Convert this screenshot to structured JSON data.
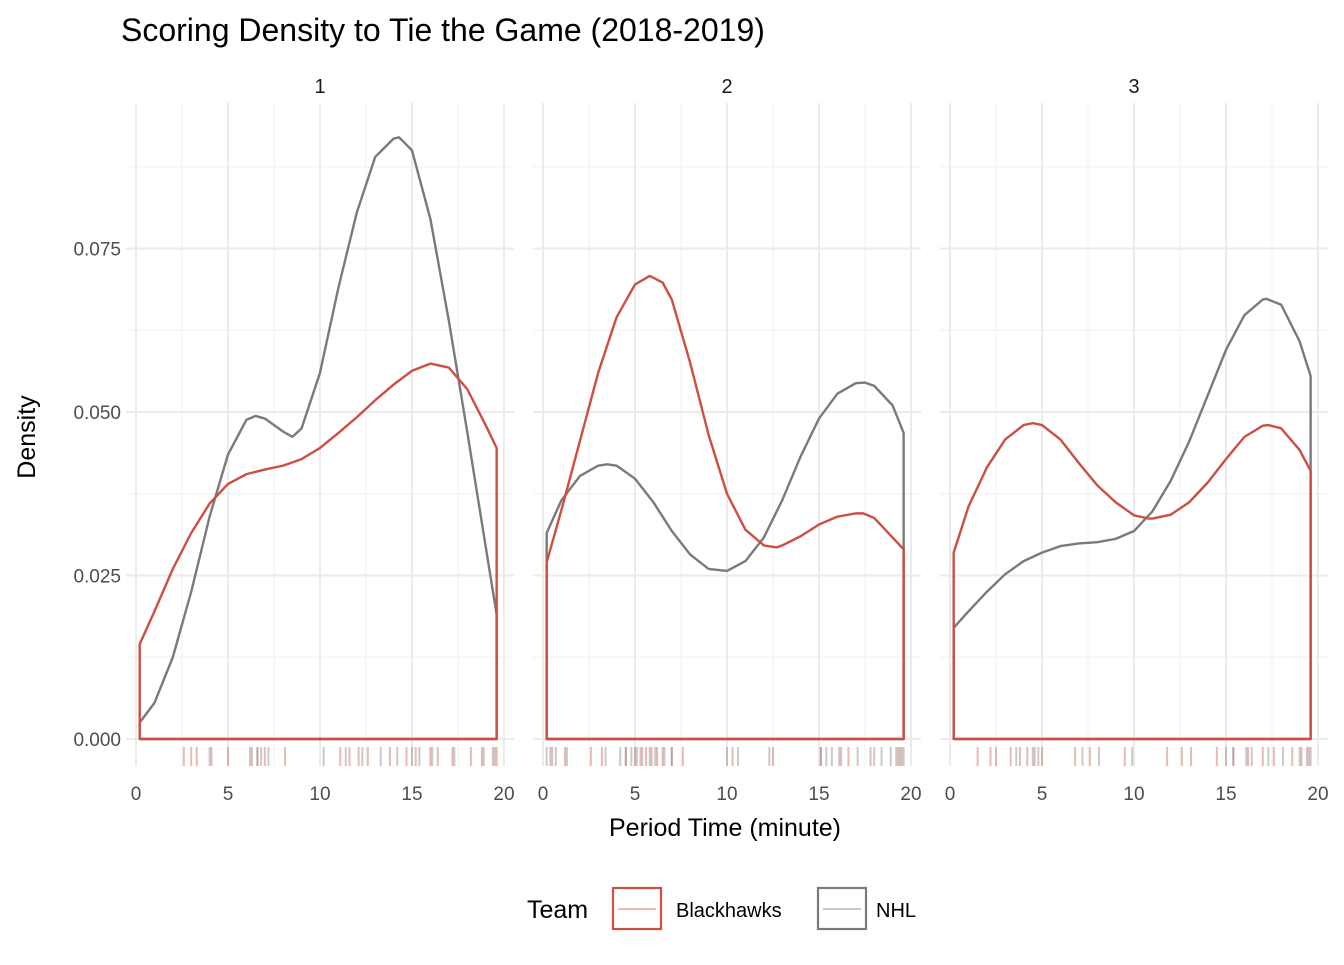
{
  "chart_data": {
    "type": "line",
    "title": "Scoring Density to Tie the Game (2018-2019)",
    "xlabel": "Period Time (minute)",
    "ylabel": "Density",
    "xlim": [
      0,
      20
    ],
    "ylim": [
      0,
      0.095
    ],
    "x_ticks": [
      "0",
      "5",
      "10",
      "15",
      "20"
    ],
    "y_ticks": [
      "0.000",
      "0.025",
      "0.050",
      "0.075"
    ],
    "grid": true,
    "legend": {
      "title": "Team",
      "position": "bottom",
      "entries": [
        "Blackhawks",
        "NHL"
      ]
    },
    "colors": {
      "Blackhawks": "#CD4E42",
      "NHL": "#7A7A7A"
    },
    "facets": [
      {
        "label": "1",
        "series": [
          {
            "name": "Blackhawks",
            "x": [
              0.2,
              1,
              2,
              3,
              4,
              5,
              6,
              7,
              8,
              9,
              10,
              11,
              12,
              13,
              14,
              15,
              16,
              17,
              18,
              19,
              19.6
            ],
            "y": [
              0.0145,
              0.0195,
              0.026,
              0.0315,
              0.036,
              0.039,
              0.0405,
              0.0412,
              0.0418,
              0.0428,
              0.0445,
              0.0468,
              0.0492,
              0.0518,
              0.0542,
              0.0563,
              0.0574,
              0.0568,
              0.0535,
              0.048,
              0.0445
            ]
          },
          {
            "name": "NHL",
            "x": [
              0.2,
              1,
              2,
              3,
              4,
              5,
              6,
              6.5,
              7,
              8,
              8.5,
              9,
              10,
              11,
              12,
              13,
              14,
              14.3,
              15,
              16,
              17,
              18,
              19,
              19.6
            ],
            "y": [
              0.0025,
              0.0055,
              0.0125,
              0.0225,
              0.034,
              0.0435,
              0.0488,
              0.0494,
              0.049,
              0.047,
              0.0462,
              0.0475,
              0.056,
              0.069,
              0.0805,
              0.089,
              0.0918,
              0.092,
              0.09,
              0.0795,
              0.064,
              0.047,
              0.0295,
              0.019
            ]
          }
        ],
        "rug": {
          "Blackhawks": [
            2.6,
            3.0,
            3.3,
            4.1,
            5.0,
            6.2,
            6.6,
            7.0,
            8.1,
            11.1,
            11.6,
            12.1,
            12.6,
            13.8,
            14.7,
            15.2,
            16.0,
            16.4,
            17.2,
            18.2,
            18.8,
            19.4,
            19.6
          ],
          "NHL": [
            4.0,
            6.3,
            6.6,
            6.8,
            7.2,
            10.2,
            11.4,
            12.3,
            13.3,
            14.2,
            15.0,
            15.4,
            16.1,
            17.3,
            18.9,
            19.5
          ]
        }
      },
      {
        "label": "2",
        "series": [
          {
            "name": "Blackhawks",
            "x": [
              0.2,
              1,
              2,
              3,
              4,
              5,
              5.8,
              6.5,
              7,
              8,
              9,
              10,
              11,
              12,
              12.7,
              13,
              14,
              15,
              16,
              17,
              17.4,
              18,
              19,
              19.6
            ],
            "y": [
              0.027,
              0.035,
              0.0455,
              0.056,
              0.0645,
              0.0695,
              0.0708,
              0.0698,
              0.0672,
              0.0575,
              0.0465,
              0.0375,
              0.032,
              0.0296,
              0.0293,
              0.0296,
              0.031,
              0.0328,
              0.034,
              0.0345,
              0.0345,
              0.0338,
              0.0308,
              0.029
            ]
          },
          {
            "name": "NHL",
            "x": [
              0.2,
              1,
              2,
              3,
              3.5,
              4,
              5,
              6,
              7,
              8,
              9,
              10,
              11,
              12,
              13,
              14,
              15,
              16,
              17,
              17.5,
              18,
              19,
              19.6
            ],
            "y": [
              0.0315,
              0.0365,
              0.0402,
              0.0418,
              0.042,
              0.0418,
              0.0398,
              0.0362,
              0.0318,
              0.0282,
              0.026,
              0.0257,
              0.0272,
              0.0308,
              0.0365,
              0.0432,
              0.049,
              0.0528,
              0.0544,
              0.0545,
              0.054,
              0.051,
              0.0468
            ]
          }
        ],
        "rug": {
          "Blackhawks": [
            0.4,
            1.2,
            2.6,
            3.2,
            4.5,
            5.0,
            5.3,
            5.6,
            5.9,
            6.2,
            6.5,
            7.0,
            7.6,
            10.3,
            12.5,
            15.1,
            16.1,
            16.6,
            17.8,
            19.3,
            19.5
          ],
          "NHL": [
            0.2,
            0.5,
            0.7,
            1.3,
            3.4,
            4.2,
            4.5,
            4.8,
            5.1,
            5.4,
            5.8,
            6.1,
            6.6,
            7.0,
            10.0,
            10.6,
            12.3,
            15.1,
            15.4,
            15.7,
            16.2,
            17.1,
            18.0,
            18.4,
            18.9,
            19.2,
            19.4,
            19.6
          ]
        }
      },
      {
        "label": "3",
        "series": [
          {
            "name": "Blackhawks",
            "x": [
              0.2,
              1,
              2,
              3,
              4,
              4.5,
              5,
              6,
              7,
              8,
              9,
              10,
              10.8,
              11,
              12,
              13,
              14,
              15,
              16,
              17,
              17.3,
              18,
              19,
              19.6
            ],
            "y": [
              0.0285,
              0.0355,
              0.0415,
              0.0458,
              0.048,
              0.0483,
              0.048,
              0.0458,
              0.0422,
              0.0388,
              0.0362,
              0.0342,
              0.0337,
              0.0337,
              0.0343,
              0.0362,
              0.0392,
              0.0428,
              0.0462,
              0.0479,
              0.048,
              0.0475,
              0.0442,
              0.041
            ]
          },
          {
            "name": "NHL",
            "x": [
              0.2,
              1,
              2,
              3,
              4,
              5,
              6,
              7,
              8,
              9,
              10,
              11,
              12,
              13,
              14,
              15,
              16,
              17,
              17.2,
              18,
              19,
              19.6
            ],
            "y": [
              0.017,
              0.0195,
              0.0225,
              0.0252,
              0.0272,
              0.0285,
              0.0295,
              0.0299,
              0.0301,
              0.0306,
              0.0318,
              0.0348,
              0.0395,
              0.0455,
              0.0525,
              0.0595,
              0.0648,
              0.0672,
              0.0673,
              0.0664,
              0.0608,
              0.0555
            ]
          }
        ],
        "rug": {
          "Blackhawks": [
            1.5,
            2.2,
            2.5,
            3.3,
            3.8,
            4.2,
            4.6,
            5.0,
            6.8,
            7.6,
            9.5,
            11.8,
            12.6,
            13.1,
            14.5,
            15.4,
            16.2,
            17.0,
            17.6,
            18.6,
            19.1,
            19.5
          ],
          "NHL": [
            3.6,
            4.5,
            4.8,
            7.2,
            8.1,
            9.9,
            15.0,
            15.4,
            16.1,
            16.4,
            17.3,
            18.1,
            19.0,
            19.4,
            19.6
          ]
        }
      }
    ]
  }
}
